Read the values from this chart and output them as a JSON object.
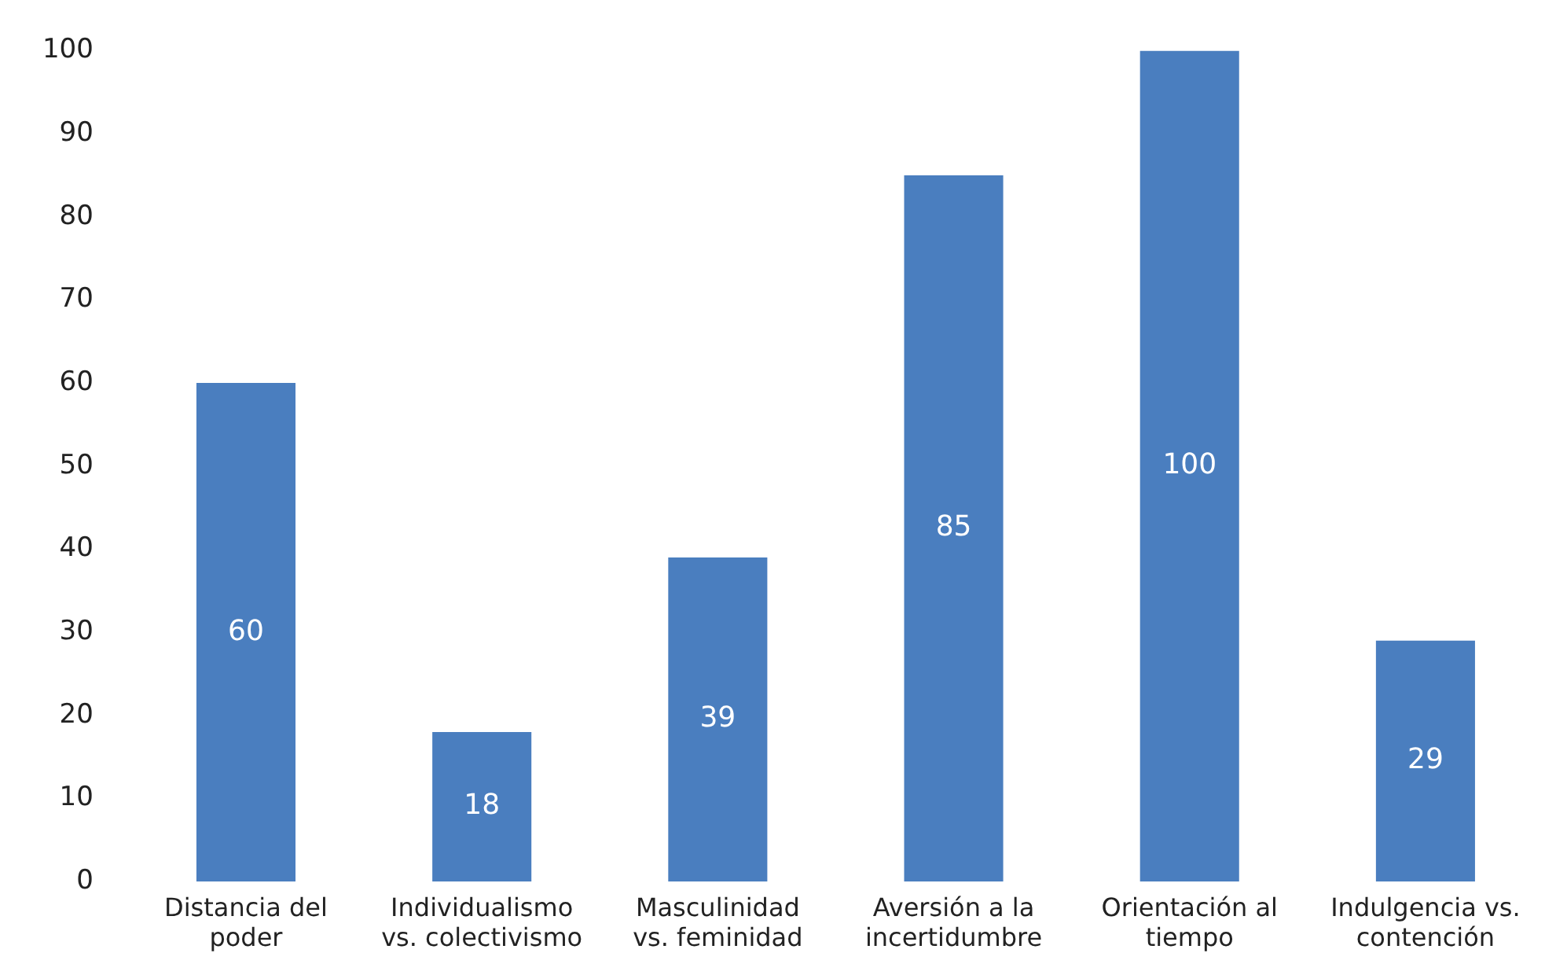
{
  "chart_data": {
    "type": "bar",
    "categories": [
      "Distancia del\npoder",
      "Individualismo\nvs. colectivismo",
      "Masculinidad\nvs. feminidad",
      "Aversión a la\nincertidumbre",
      "Orientación al\ntiempo",
      "Indulgencia vs.\ncontención"
    ],
    "values": [
      60,
      18,
      39,
      85,
      100,
      29
    ],
    "color": "#4a7ebf",
    "ylim": [
      0,
      100
    ],
    "yticks": [
      0,
      10,
      20,
      30,
      40,
      50,
      60,
      70,
      80,
      90,
      100
    ],
    "grid": false,
    "legend": false,
    "data_labels": true
  }
}
